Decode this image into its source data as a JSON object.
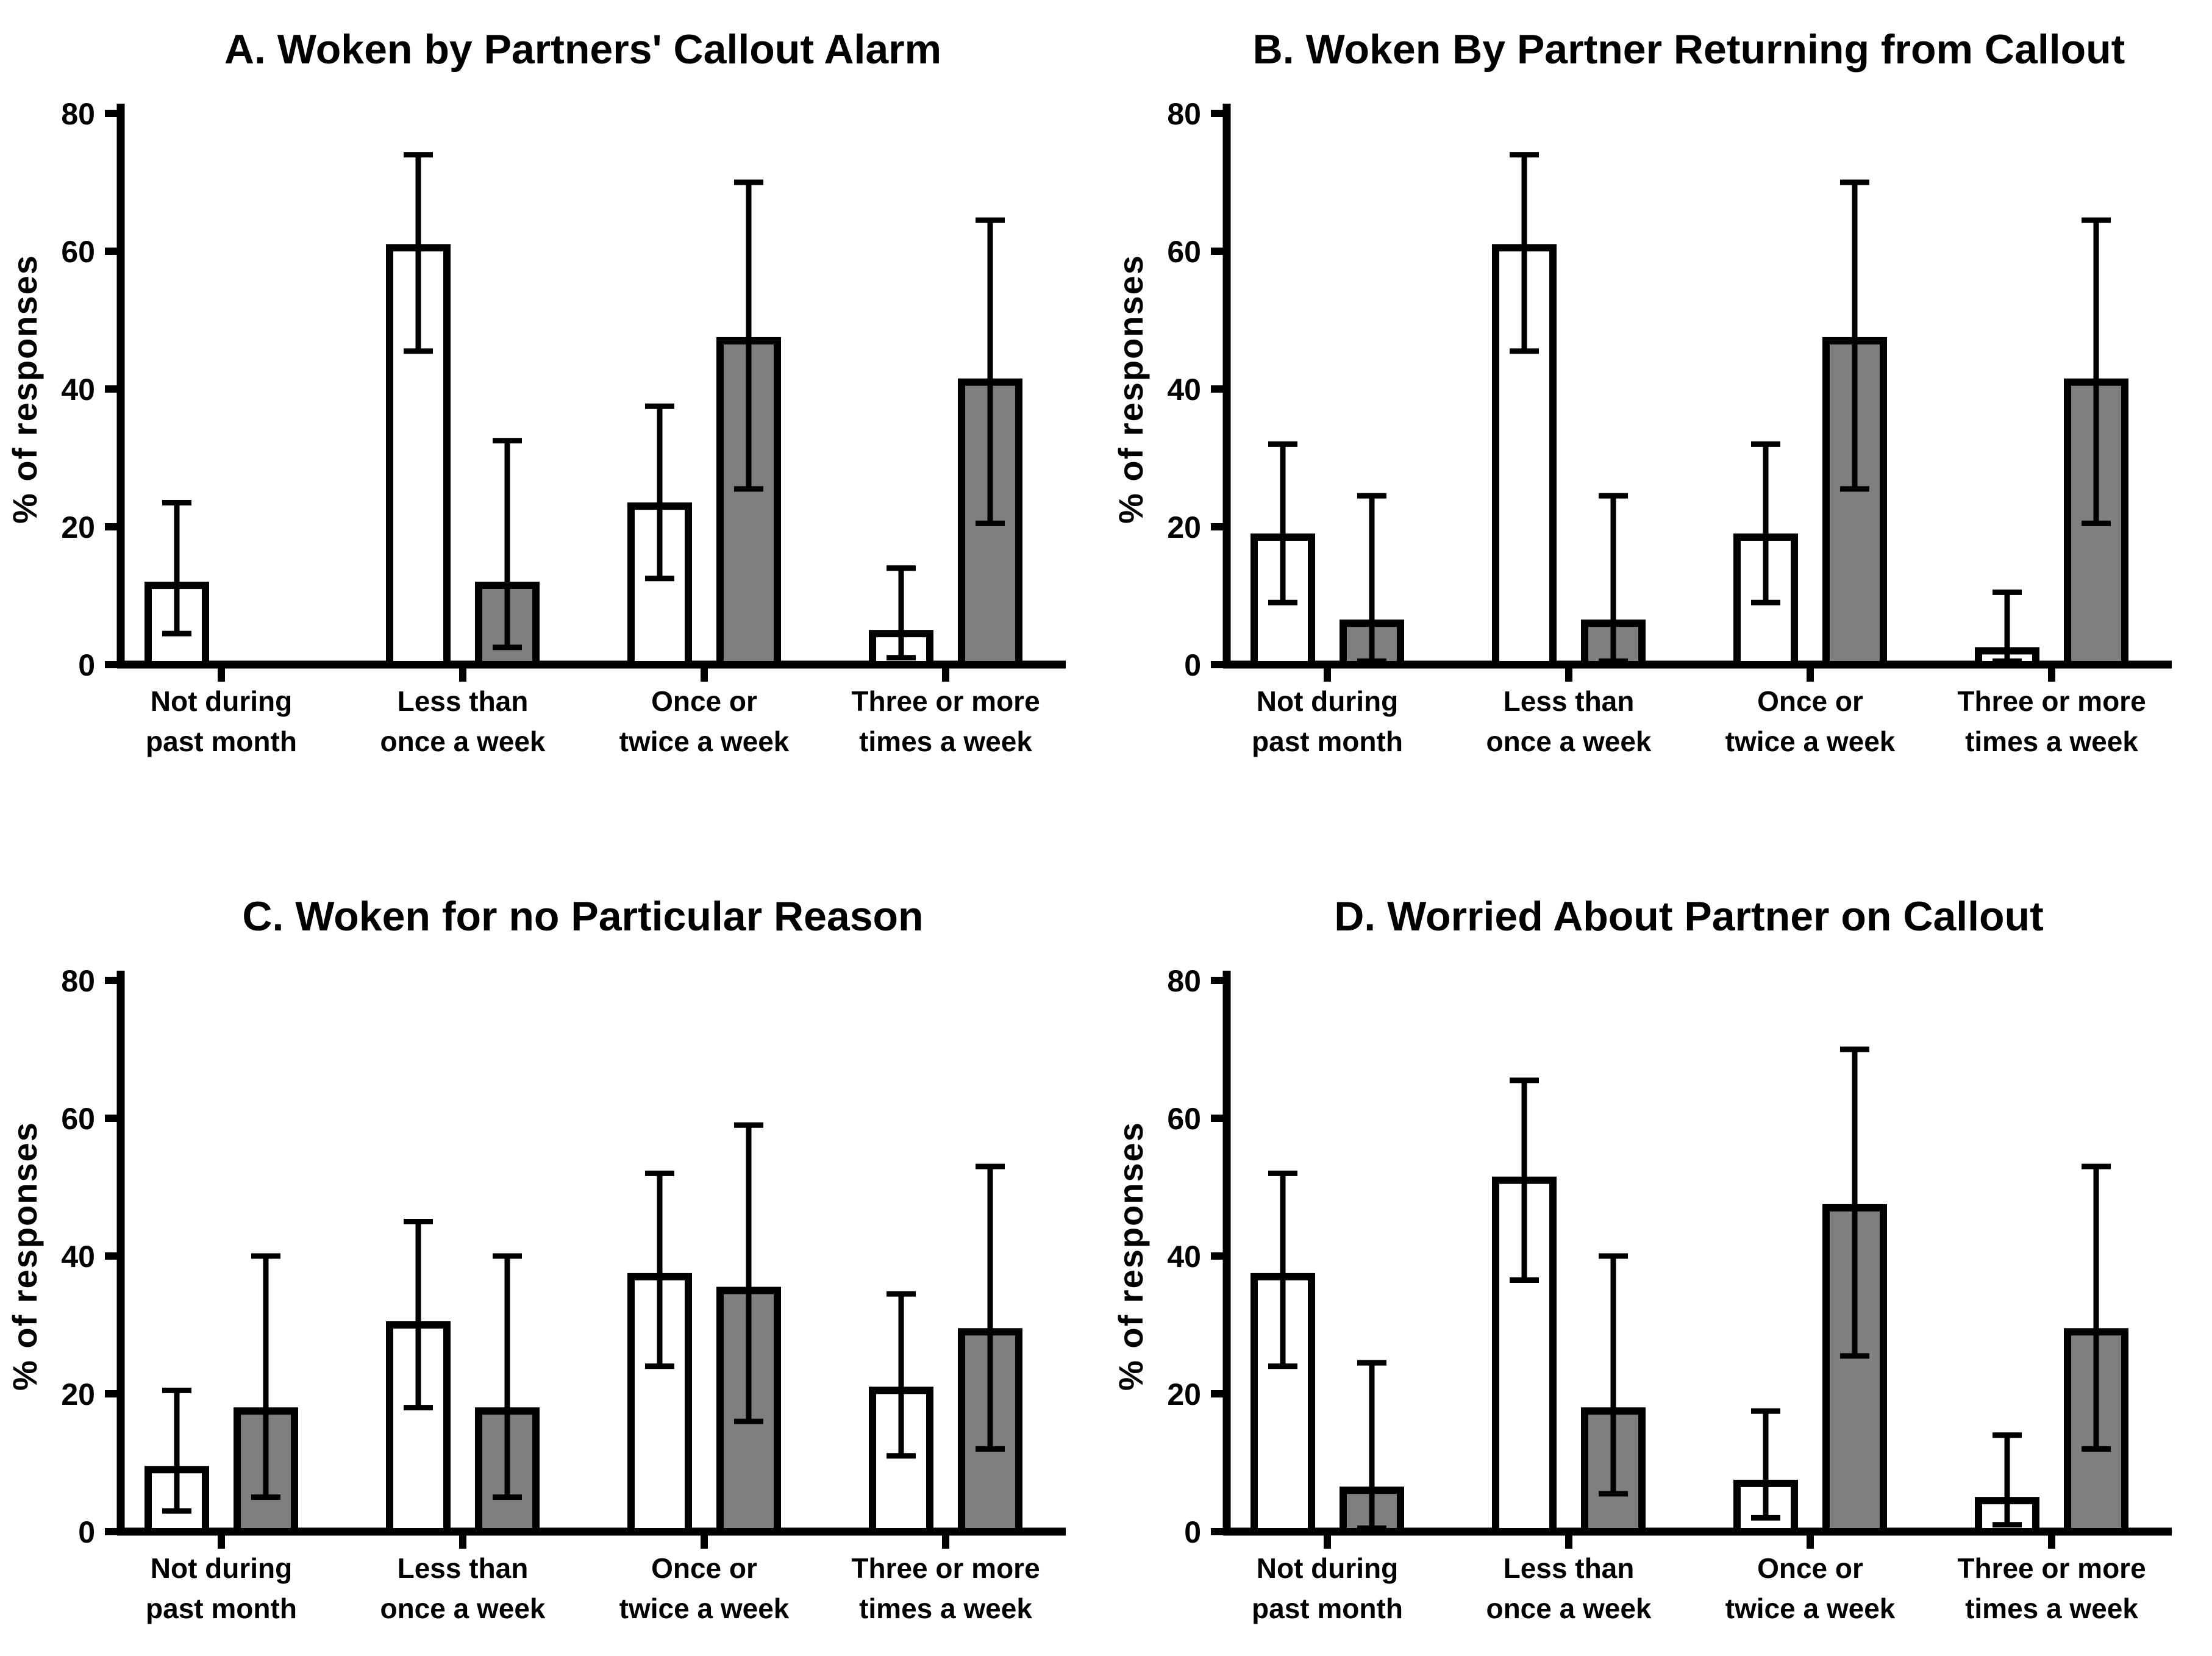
{
  "figure": {
    "background_color": "#ffffff",
    "axis_color": "#000000",
    "bar_fill_white": "#ffffff",
    "bar_fill_grey": "#7f7f7f",
    "ylabel": "% of responses",
    "yticks": [
      0,
      20,
      40,
      60,
      80
    ],
    "ylim": [
      0,
      80
    ],
    "categories": [
      "Not during\npast month",
      "Less than\nonce a week",
      "Once or\ntwice a week",
      "Three or more\ntimes a week"
    ]
  },
  "chart_data": [
    {
      "type": "bar",
      "panel": "A",
      "title": "A. Woken by Partners' Callout Alarm",
      "xlabel": "",
      "ylabel": "% of responses",
      "ylim": [
        0,
        80
      ],
      "grid": false,
      "legend": "none",
      "categories": [
        "Not during\npast month",
        "Less than\nonce a week",
        "Once or\ntwice a week",
        "Three or more\ntimes a week"
      ],
      "series": [
        {
          "name": "white-bars",
          "fill": "#ffffff",
          "values": [
            11.5,
            60.5,
            23,
            4.5
          ],
          "err_lo": [
            4.5,
            45.5,
            12.5,
            1
          ],
          "err_hi": [
            23.5,
            74,
            37.5,
            14
          ]
        },
        {
          "name": "grey-bars",
          "fill": "#7f7f7f",
          "values": [
            0,
            11.5,
            47,
            41
          ],
          "err_lo": [
            null,
            2.5,
            25.5,
            20.5
          ],
          "err_hi": [
            null,
            32.5,
            70,
            64.5
          ]
        }
      ]
    },
    {
      "type": "bar",
      "panel": "B",
      "title": "B. Woken By Partner Returning from Callout",
      "xlabel": "",
      "ylabel": "% of responses",
      "ylim": [
        0,
        80
      ],
      "grid": false,
      "legend": "none",
      "categories": [
        "Not during\npast month",
        "Less than\nonce a week",
        "Once or\ntwice a week",
        "Three or more\ntimes a week"
      ],
      "series": [
        {
          "name": "white-bars",
          "fill": "#ffffff",
          "values": [
            18.5,
            60.5,
            18.5,
            2
          ],
          "err_lo": [
            9,
            45.5,
            9,
            0.5
          ],
          "err_hi": [
            32,
            74,
            32,
            10.5
          ]
        },
        {
          "name": "grey-bars",
          "fill": "#7f7f7f",
          "values": [
            6,
            6,
            47,
            41
          ],
          "err_lo": [
            0.5,
            0.5,
            25.5,
            20.5
          ],
          "err_hi": [
            24.5,
            24.5,
            70,
            64.5
          ]
        }
      ]
    },
    {
      "type": "bar",
      "panel": "C",
      "title": "C. Woken for no Particular Reason",
      "xlabel": "",
      "ylabel": "% of responses",
      "ylim": [
        0,
        80
      ],
      "grid": false,
      "legend": "none",
      "categories": [
        "Not during\npast month",
        "Less than\nonce a week",
        "Once or\ntwice a week",
        "Three or more\ntimes a week"
      ],
      "series": [
        {
          "name": "white-bars",
          "fill": "#ffffff",
          "values": [
            9,
            30,
            37,
            20.5
          ],
          "err_lo": [
            3,
            18,
            24,
            11
          ],
          "err_hi": [
            20.5,
            45,
            52,
            34.5
          ]
        },
        {
          "name": "grey-bars",
          "fill": "#7f7f7f",
          "values": [
            17.5,
            17.5,
            35,
            29
          ],
          "err_lo": [
            5,
            5,
            16,
            12
          ],
          "err_hi": [
            40,
            40,
            59,
            53
          ]
        }
      ]
    },
    {
      "type": "bar",
      "panel": "D",
      "title": "D. Worried About Partner on Callout",
      "xlabel": "",
      "ylabel": "% of responses",
      "ylim": [
        0,
        80
      ],
      "grid": false,
      "legend": "none",
      "categories": [
        "Not during\npast month",
        "Less than\nonce a week",
        "Once or\ntwice a week",
        "Three or more\ntimes a week"
      ],
      "series": [
        {
          "name": "white-bars",
          "fill": "#ffffff",
          "values": [
            37,
            51,
            7,
            4.5
          ],
          "err_lo": [
            24,
            36.5,
            2,
            1
          ],
          "err_hi": [
            52,
            65.5,
            17.5,
            14
          ]
        },
        {
          "name": "grey-bars",
          "fill": "#7f7f7f",
          "values": [
            6,
            17.5,
            47,
            29
          ],
          "err_lo": [
            0.5,
            5.5,
            25.5,
            12
          ],
          "err_hi": [
            24.5,
            40,
            70,
            53
          ]
        }
      ]
    }
  ]
}
